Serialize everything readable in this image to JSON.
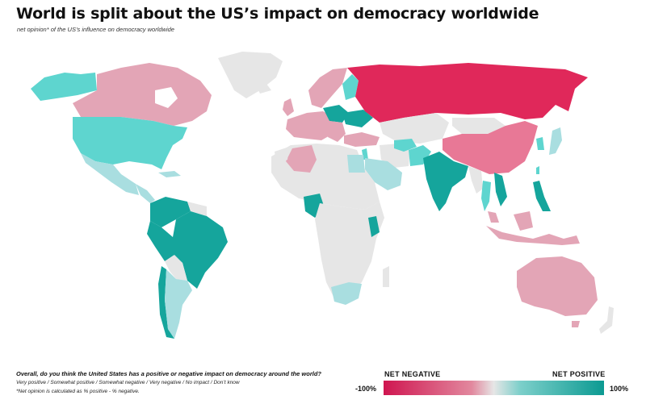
{
  "title": "World is split about the US’s impact on democracy worldwide",
  "subtitle": "net opinion* of the US’s influence on democracy worldwide",
  "question": "Overall, do you think the United States has a positive or negative impact on democracy around the world?",
  "answer_options": "Very positive / Somewhat positive / Somewhat negative / Very negative / No impact / Don’t know",
  "footnote": "*Net opinion is calculated as % positive - % negative.",
  "legend": {
    "negative_label": "NET NEGATIVE",
    "positive_label": "NET POSITIVE",
    "min_label": "-100%",
    "max_label": "100%"
  },
  "colors": {
    "strong_negative": "#e0285a",
    "negative": "#e3a5b6",
    "neutral": "#e6e6e6",
    "positive": "#5ed5cf",
    "light_positive": "#a9dee0",
    "strong_positive": "#15a59c",
    "ocean": "#ffffff"
  }
}
